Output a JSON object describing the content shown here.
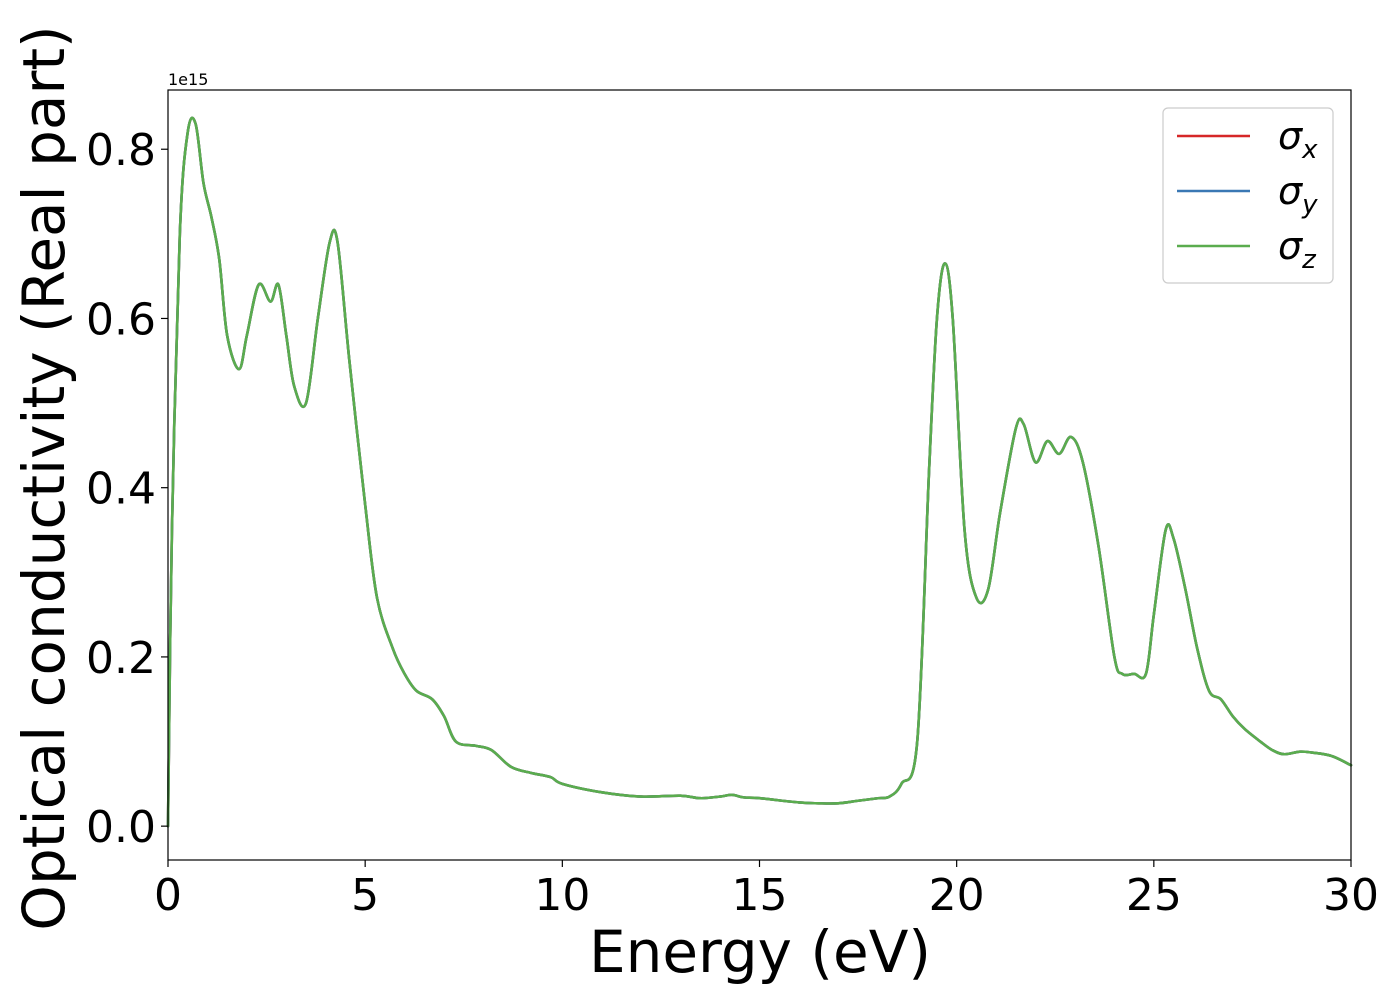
{
  "chart_data": {
    "type": "line",
    "xlabel": "Energy (eV)",
    "ylabel": "Optical conductivity (Real part)",
    "offset_text": "1e15",
    "xlim": [
      0,
      30
    ],
    "ylim": [
      -0.04,
      0.87
    ],
    "x_ticks": [
      0,
      5,
      10,
      15,
      20,
      25,
      30
    ],
    "y_ticks": [
      0.0,
      0.2,
      0.4,
      0.6,
      0.8
    ],
    "x_tick_labels": [
      "0",
      "5",
      "10",
      "15",
      "20",
      "25",
      "30"
    ],
    "y_tick_labels": [
      "0.0",
      "0.2",
      "0.4",
      "0.6",
      "0.8"
    ],
    "grid": false,
    "legend_placement": "top-right",
    "x": [
      0.0,
      0.1,
      0.3,
      0.5,
      0.7,
      0.9,
      1.1,
      1.3,
      1.5,
      1.8,
      2.0,
      2.3,
      2.6,
      2.8,
      3.0,
      3.2,
      3.5,
      3.8,
      4.1,
      4.3,
      4.6,
      5.0,
      5.3,
      5.7,
      6.0,
      6.3,
      6.7,
      7.0,
      7.3,
      7.8,
      8.2,
      8.7,
      9.2,
      9.7,
      10.0,
      11.0,
      12.0,
      13.0,
      13.5,
      14.0,
      14.3,
      14.6,
      15.0,
      16.0,
      16.5,
      17.0,
      17.5,
      18.0,
      18.3,
      18.6,
      19.0,
      19.3,
      19.5,
      19.7,
      19.9,
      20.2,
      20.5,
      20.8,
      21.1,
      21.5,
      21.7,
      22.0,
      22.3,
      22.6,
      22.9,
      23.2,
      23.6,
      24.0,
      24.2,
      24.5,
      24.8,
      25.0,
      25.3,
      25.5,
      25.8,
      26.1,
      26.4,
      26.7,
      27.0,
      27.3,
      27.7,
      28.0,
      28.3,
      28.7,
      29.0,
      29.5,
      30.0
    ],
    "series": [
      {
        "name": "σx",
        "label_main": "σ",
        "label_sub": "x",
        "color": "#d62728",
        "values": [
          0.0,
          0.35,
          0.7,
          0.82,
          0.83,
          0.76,
          0.72,
          0.67,
          0.58,
          0.54,
          0.58,
          0.64,
          0.62,
          0.64,
          0.58,
          0.52,
          0.5,
          0.6,
          0.69,
          0.69,
          0.55,
          0.38,
          0.27,
          0.21,
          0.18,
          0.16,
          0.15,
          0.13,
          0.1,
          0.095,
          0.09,
          0.07,
          0.063,
          0.058,
          0.05,
          0.04,
          0.035,
          0.036,
          0.033,
          0.035,
          0.037,
          0.034,
          0.033,
          0.028,
          0.027,
          0.027,
          0.03,
          0.033,
          0.035,
          0.05,
          0.1,
          0.42,
          0.6,
          0.665,
          0.6,
          0.35,
          0.27,
          0.28,
          0.37,
          0.47,
          0.475,
          0.43,
          0.455,
          0.44,
          0.46,
          0.43,
          0.33,
          0.2,
          0.18,
          0.18,
          0.18,
          0.25,
          0.35,
          0.34,
          0.28,
          0.21,
          0.16,
          0.15,
          0.13,
          0.115,
          0.1,
          0.09,
          0.085,
          0.088,
          0.087,
          0.083,
          0.072
        ]
      },
      {
        "name": "σy",
        "label_main": "σ",
        "label_sub": "y",
        "color": "#3a78b4",
        "values": [
          0.0,
          0.35,
          0.7,
          0.82,
          0.83,
          0.76,
          0.72,
          0.67,
          0.58,
          0.54,
          0.58,
          0.64,
          0.62,
          0.64,
          0.58,
          0.52,
          0.5,
          0.6,
          0.69,
          0.69,
          0.55,
          0.38,
          0.27,
          0.21,
          0.18,
          0.16,
          0.15,
          0.13,
          0.1,
          0.095,
          0.09,
          0.07,
          0.063,
          0.058,
          0.05,
          0.04,
          0.035,
          0.036,
          0.033,
          0.035,
          0.037,
          0.034,
          0.033,
          0.028,
          0.027,
          0.027,
          0.03,
          0.033,
          0.035,
          0.05,
          0.1,
          0.42,
          0.6,
          0.665,
          0.6,
          0.35,
          0.27,
          0.28,
          0.37,
          0.47,
          0.475,
          0.43,
          0.455,
          0.44,
          0.46,
          0.43,
          0.33,
          0.2,
          0.18,
          0.18,
          0.18,
          0.25,
          0.35,
          0.34,
          0.28,
          0.21,
          0.16,
          0.15,
          0.13,
          0.115,
          0.1,
          0.09,
          0.085,
          0.088,
          0.087,
          0.083,
          0.072
        ]
      },
      {
        "name": "σz",
        "label_main": "σ",
        "label_sub": "z",
        "color": "#5aac4e",
        "values": [
          0.0,
          0.35,
          0.7,
          0.82,
          0.83,
          0.76,
          0.72,
          0.67,
          0.58,
          0.54,
          0.58,
          0.64,
          0.62,
          0.64,
          0.58,
          0.52,
          0.5,
          0.6,
          0.69,
          0.69,
          0.55,
          0.38,
          0.27,
          0.21,
          0.18,
          0.16,
          0.15,
          0.13,
          0.1,
          0.095,
          0.09,
          0.07,
          0.063,
          0.058,
          0.05,
          0.04,
          0.035,
          0.036,
          0.033,
          0.035,
          0.037,
          0.034,
          0.033,
          0.028,
          0.027,
          0.027,
          0.03,
          0.033,
          0.035,
          0.05,
          0.1,
          0.42,
          0.6,
          0.665,
          0.6,
          0.35,
          0.27,
          0.28,
          0.37,
          0.47,
          0.475,
          0.43,
          0.455,
          0.44,
          0.46,
          0.43,
          0.33,
          0.2,
          0.18,
          0.18,
          0.18,
          0.25,
          0.35,
          0.34,
          0.28,
          0.21,
          0.16,
          0.15,
          0.13,
          0.115,
          0.1,
          0.09,
          0.085,
          0.088,
          0.087,
          0.083,
          0.072
        ]
      }
    ]
  }
}
